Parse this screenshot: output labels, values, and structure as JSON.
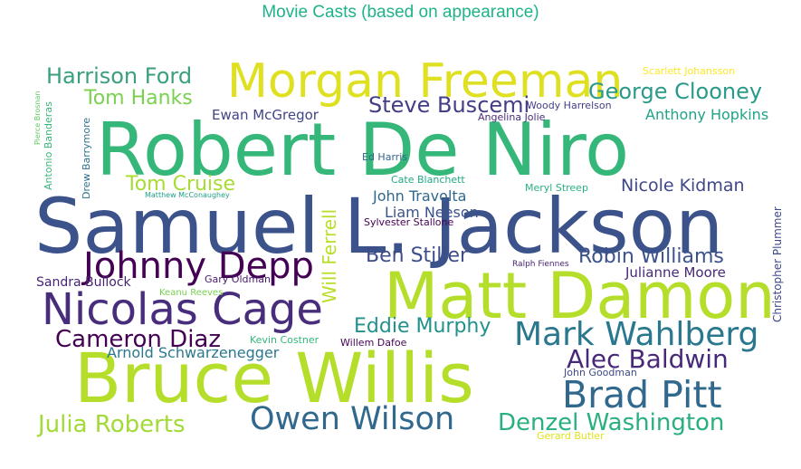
{
  "title": "Movie Casts (based on appearance)",
  "words": [
    {
      "text": "Robert De Niro",
      "color": "#35b779"
    },
    {
      "text": "Samuel L. Jackson",
      "color": "#3b528b"
    },
    {
      "text": "Bruce Willis",
      "color": "#b5de2b"
    },
    {
      "text": "Matt Damon",
      "color": "#b5de2b"
    },
    {
      "text": "Morgan Freeman",
      "color": "#e0e022"
    },
    {
      "text": "Nicolas Cage",
      "color": "#472d7b"
    },
    {
      "text": "Johnny Depp",
      "color": "#440154"
    },
    {
      "text": "Brad Pitt",
      "color": "#31688e"
    },
    {
      "text": "Owen Wilson",
      "color": "#31688e"
    },
    {
      "text": "Mark Wahlberg",
      "color": "#2a788e"
    },
    {
      "text": "Harrison Ford",
      "color": "#3a9f7f"
    },
    {
      "text": "George Clooney",
      "color": "#2a9a8a"
    },
    {
      "text": "Steve Buscemi",
      "color": "#433e85"
    },
    {
      "text": "Alec Baldwin",
      "color": "#482878"
    },
    {
      "text": "Cameron Diaz",
      "color": "#440154"
    },
    {
      "text": "Denzel Washington",
      "color": "#2ab07f"
    },
    {
      "text": "Julia Roberts",
      "color": "#a2da37"
    },
    {
      "text": "Tom Hanks",
      "color": "#7ad151"
    },
    {
      "text": "Tom Cruise",
      "color": "#a8db34"
    },
    {
      "text": "Ben Stiller",
      "color": "#3e4c8a"
    },
    {
      "text": "Robin Williams",
      "color": "#3b528b"
    },
    {
      "text": "Eddie Murphy",
      "color": "#21918c"
    },
    {
      "text": "Nicole Kidman",
      "color": "#3f4788"
    },
    {
      "text": "Anthony Hopkins",
      "color": "#20a386"
    },
    {
      "text": "Ewan McGregor",
      "color": "#414487"
    },
    {
      "text": "John Travolta",
      "color": "#31688e"
    },
    {
      "text": "Liam Neeson",
      "color": "#3b528b"
    },
    {
      "text": "Julianne Moore",
      "color": "#482878"
    },
    {
      "text": "Arnold Schwarzenegger",
      "color": "#2a788e"
    },
    {
      "text": "Sandra Bullock",
      "color": "#482475"
    },
    {
      "text": "Will Ferrell",
      "color": "#b8de29"
    },
    {
      "text": "Scarlett Johansson",
      "color": "#fde725"
    },
    {
      "text": "Woody Harrelson",
      "color": "#424086"
    },
    {
      "text": "Angelina Jolie",
      "color": "#472d7b"
    },
    {
      "text": "Ed Harris",
      "color": "#33638d"
    },
    {
      "text": "Cate Blanchett",
      "color": "#22a884"
    },
    {
      "text": "Meryl Streep",
      "color": "#2ab07f"
    },
    {
      "text": "Sylvester Stallone",
      "color": "#440154"
    },
    {
      "text": "Ralph Fiennes",
      "color": "#482475"
    },
    {
      "text": "Gary Oldman",
      "color": "#481a6c"
    },
    {
      "text": "Keanu Reeves",
      "color": "#7ad151"
    },
    {
      "text": "Kevin Costner",
      "color": "#35b779"
    },
    {
      "text": "Willem Dafoe",
      "color": "#450457"
    },
    {
      "text": "John Goodman",
      "color": "#3e4989"
    },
    {
      "text": "Gerard Butler",
      "color": "#dfe318"
    },
    {
      "text": "Matthew McConaughey",
      "color": "#1f9e89"
    },
    {
      "text": "Antonio Banderas",
      "color": "#35b779"
    },
    {
      "text": "Pierce Brosnan",
      "color": "#5ec962"
    },
    {
      "text": "Drew Barrymore",
      "color": "#2c728e"
    },
    {
      "text": "Christopher Plummer",
      "color": "#3e4989"
    }
  ]
}
